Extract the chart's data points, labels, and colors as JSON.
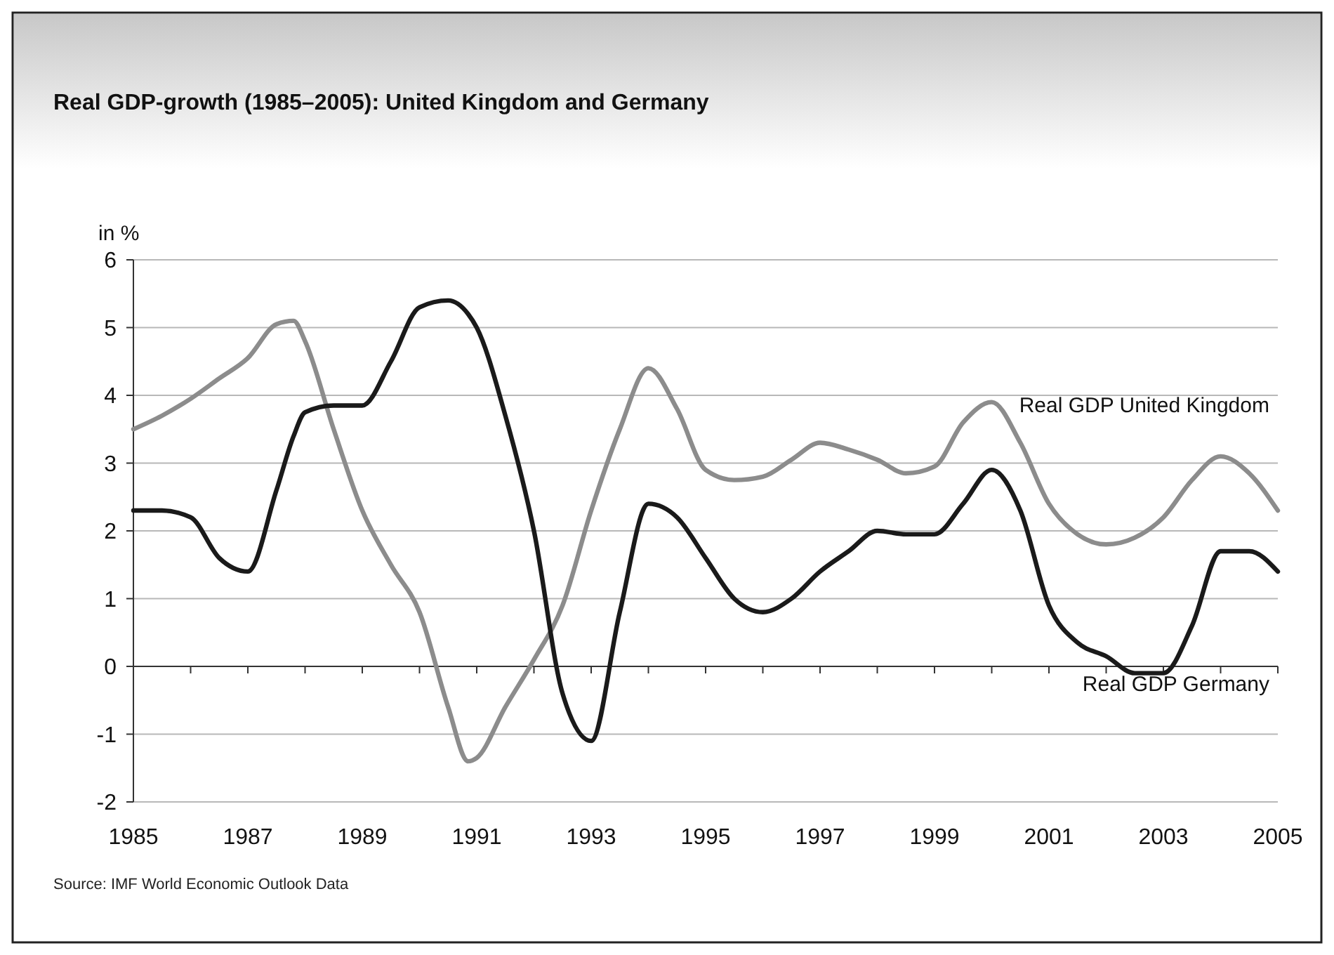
{
  "chart_data": {
    "type": "line",
    "title": "Real GDP-growth (1985–2005): United Kingdom and Germany",
    "ylabel": "in %",
    "annotations": [
      "Source: IMF World Economic Outlook Data"
    ],
    "x": [
      1985,
      1985.5,
      1986,
      1986.5,
      1987,
      1987.5,
      1987.8,
      1988,
      1988.5,
      1989,
      1989.5,
      1990,
      1990.5,
      1990.85,
      1991,
      1991.5,
      1992,
      1992.5,
      1993,
      1993.5,
      1994,
      1994.5,
      1995,
      1995.5,
      1996,
      1996.5,
      1997,
      1997.5,
      1998,
      1998.5,
      1999,
      1999.5,
      2000,
      2000.5,
      2001,
      2001.5,
      2002,
      2002.5,
      2003,
      2003.5,
      2004,
      2004.5,
      2005
    ],
    "series": [
      {
        "name": "Real GDP United Kingdom",
        "color": "#8c8c8c",
        "values": [
          3.5,
          3.7,
          3.95,
          4.25,
          4.55,
          5.05,
          5.1,
          4.8,
          3.5,
          2.3,
          1.5,
          0.8,
          -0.6,
          -1.4,
          -1.35,
          -0.6,
          0.1,
          0.9,
          2.3,
          3.5,
          4.4,
          3.8,
          2.9,
          2.75,
          2.8,
          3.05,
          3.3,
          3.2,
          3.05,
          2.85,
          2.95,
          3.6,
          3.9,
          3.3,
          2.4,
          1.95,
          1.8,
          1.9,
          2.2,
          2.75,
          3.1,
          2.85,
          2.3
        ]
      },
      {
        "name": "Real GDP Germany",
        "color": "#1a1a1a",
        "values": [
          2.3,
          2.3,
          2.2,
          1.6,
          1.4,
          2.6,
          3.4,
          3.75,
          3.85,
          3.85,
          4.5,
          5.3,
          5.4,
          5.2,
          5.0,
          3.7,
          2.0,
          -0.4,
          -1.1,
          0.8,
          2.4,
          2.2,
          1.6,
          1.0,
          0.8,
          1.0,
          1.4,
          1.7,
          2.0,
          1.95,
          1.95,
          2.4,
          2.9,
          2.3,
          0.9,
          0.35,
          0.15,
          -0.1,
          -0.1,
          0.6,
          1.7,
          1.7,
          1.4
        ]
      }
    ],
    "xlim": [
      1985,
      2005
    ],
    "xticks": [
      1985,
      {
        "value": 1986,
        "label": null
      },
      1987,
      {
        "value": 1988,
        "label": null
      },
      1989,
      {
        "value": 1990,
        "label": null
      },
      1991,
      {
        "value": 1992,
        "label": null
      },
      1993,
      {
        "value": 1994,
        "label": null
      },
      1995,
      {
        "value": 1996,
        "label": null
      },
      1997,
      {
        "value": 1998,
        "label": null
      },
      1999,
      {
        "value": 2000,
        "label": null
      },
      2001,
      {
        "value": 2002,
        "label": null
      },
      2003,
      {
        "value": 2004,
        "label": null
      },
      2005
    ],
    "ylim": [
      -2,
      6
    ],
    "yticks": [
      -2,
      -1,
      0,
      1,
      2,
      3,
      4,
      5,
      6
    ],
    "grid": "y",
    "marker": "none",
    "line_style": "solid"
  }
}
